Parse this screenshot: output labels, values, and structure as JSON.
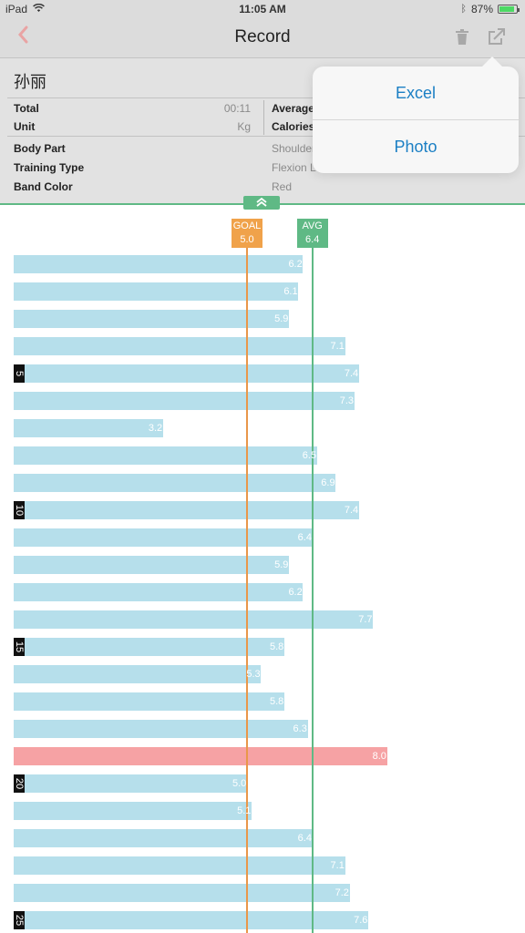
{
  "status_bar": {
    "device": "iPad",
    "time": "11:05 AM",
    "battery": "87%",
    "battery_level": 0.87
  },
  "nav": {
    "title": "Record",
    "back_icon": "chevron-left-icon",
    "delete_icon": "trash-icon",
    "share_icon": "share-icon"
  },
  "record": {
    "name": "孙丽",
    "total_label": "Total",
    "total_value": "00:11",
    "unit_label": "Unit",
    "unit_value": "Kg",
    "average_label": "Average",
    "calories_label": "Calories",
    "body_part_label": "Body Part",
    "body_part_value": "Shoulder",
    "training_type_label": "Training Type",
    "training_type_value": "Flexion Lev",
    "band_color_label": "Band Color",
    "band_color_value": "Red"
  },
  "menu": {
    "items": [
      "Excel",
      "Photo"
    ]
  },
  "colors": {
    "bar": "#b6dfeb",
    "max_bar": "#f6a2a4",
    "goal": "#f0a24a",
    "avg": "#5fb985",
    "accent": "#1b7fc4"
  },
  "chart_data": {
    "type": "bar",
    "orientation": "horizontal",
    "goal_label": "GOAL",
    "goal": 5.0,
    "goal_text": "5.0",
    "avg_label": "AVG",
    "avg": 6.4,
    "avg_text": "6.4",
    "row_markers": [
      "5",
      "10",
      "15",
      "20",
      "25"
    ],
    "values": [
      6.2,
      6.1,
      5.9,
      7.1,
      7.4,
      7.3,
      3.2,
      6.5,
      6.9,
      7.4,
      6.4,
      5.9,
      6.2,
      7.7,
      5.8,
      5.3,
      5.8,
      6.3,
      8.0,
      5.0,
      5.1,
      6.4,
      7.1,
      7.2,
      7.6
    ],
    "labels": [
      "6.2",
      "6.1",
      "5.9",
      "7.1",
      "7.4",
      "7.3",
      "3.2",
      "6.5",
      "6.9",
      "7.4",
      "6.4",
      "5.9",
      "6.2",
      "7.7",
      "5.8",
      "5.3",
      "5.8",
      "6.3",
      "8.0",
      "5.0",
      "5.1",
      "6.4",
      "7.1",
      "7.2",
      "7.6"
    ]
  }
}
